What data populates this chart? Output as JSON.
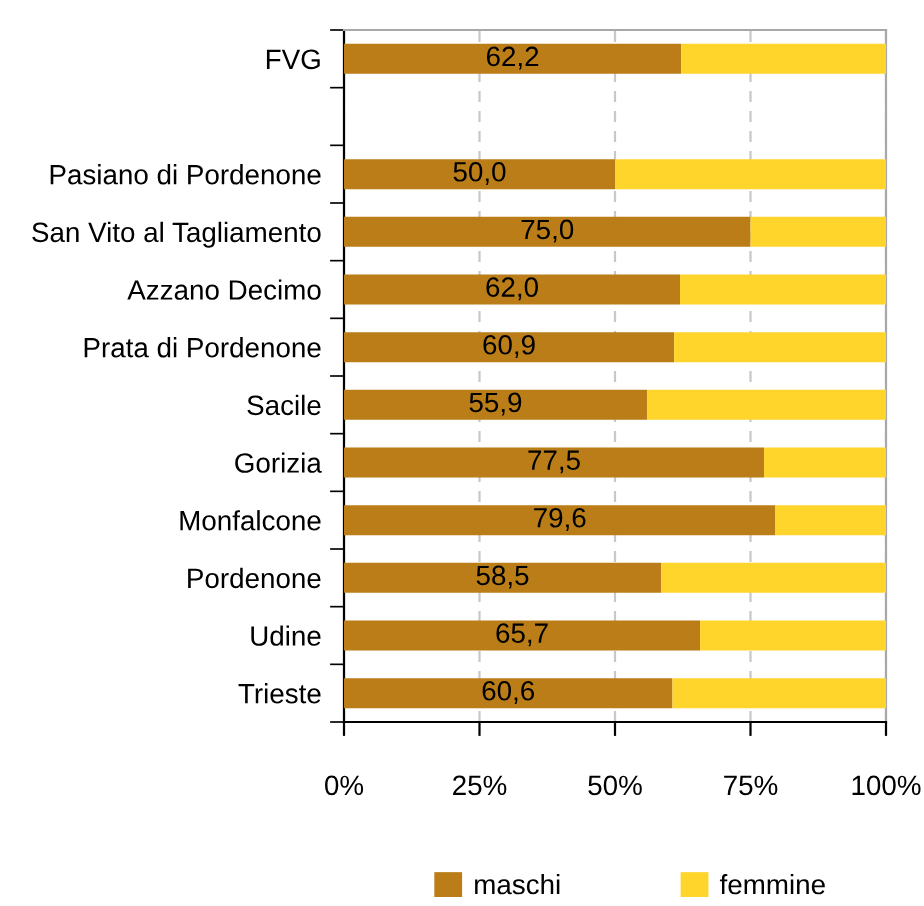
{
  "chart_data": {
    "type": "bar",
    "orientation": "horizontal",
    "stacked": true,
    "categories": [
      "FVG",
      null,
      "Pasiano di Pordenone",
      "San Vito al Tagliamento",
      "Azzano Decimo",
      "Prata di Pordenone",
      "Sacile",
      "Gorizia",
      "Monfalcone",
      "Pordenone",
      "Udine",
      "Trieste"
    ],
    "series": [
      {
        "name": "maschi",
        "color": "#ba7d17",
        "values": [
          62.2,
          null,
          50.0,
          75.0,
          62.0,
          60.9,
          55.9,
          77.5,
          79.6,
          58.5,
          65.7,
          60.6
        ],
        "value_labels": [
          "62,2",
          null,
          "50,0",
          "75,0",
          "62,0",
          "60,9",
          "55,9",
          "77,5",
          "79,6",
          "58,5",
          "65,7",
          "60,6"
        ]
      },
      {
        "name": "femmine",
        "color": "#ffd42b",
        "values": [
          37.8,
          null,
          50.0,
          25.0,
          38.0,
          39.1,
          44.1,
          22.5,
          20.4,
          41.5,
          34.3,
          39.4
        ]
      }
    ],
    "xlim": [
      0,
      100
    ],
    "xticks": [
      {
        "value": 0,
        "label": "0%"
      },
      {
        "value": 25,
        "label": "25%"
      },
      {
        "value": 50,
        "label": "50%"
      },
      {
        "value": 75,
        "label": "75%"
      },
      {
        "value": 100,
        "label": "100%"
      }
    ],
    "grid": "x",
    "legend": "bottom"
  }
}
